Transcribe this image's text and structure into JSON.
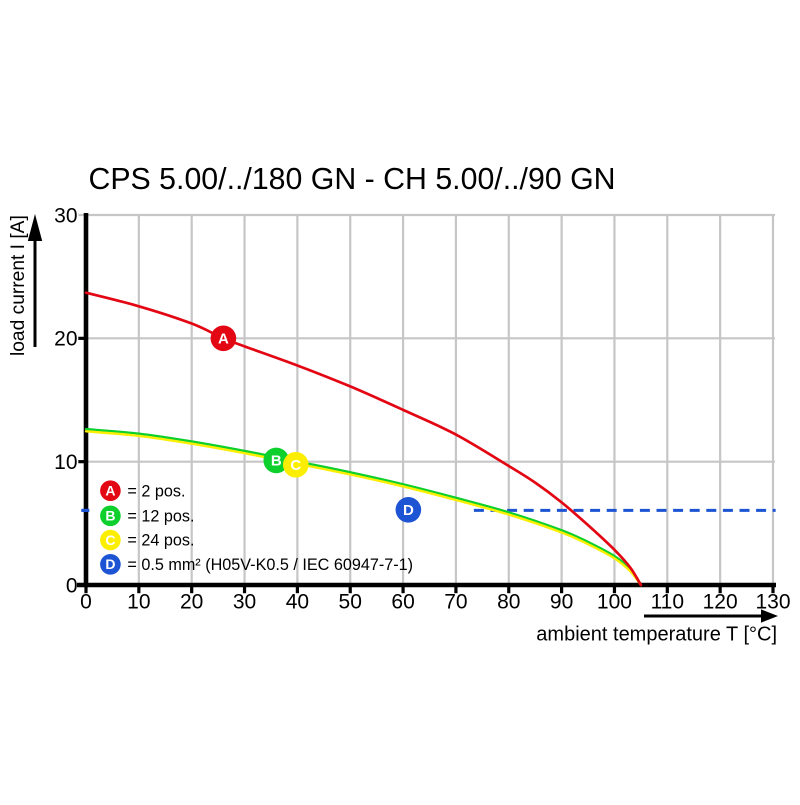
{
  "chart_data": {
    "type": "line",
    "title": "CPS 5.00/../180 GN - CH 5.00/../90 GN",
    "xlabel": "ambient temperature T [°C]",
    "ylabel": "load current I [A]",
    "xlim": [
      0,
      130
    ],
    "ylim": [
      0,
      30
    ],
    "xticks": [
      0,
      10,
      20,
      30,
      40,
      50,
      60,
      70,
      80,
      90,
      100,
      110,
      120,
      130
    ],
    "yticks": [
      0,
      10,
      20,
      30
    ],
    "grid": true,
    "grid_color": "#c6c6c6",
    "axis_color": "#000000",
    "background": "#ffffff",
    "legend_position": "bottom-left-inside",
    "series": [
      {
        "name": "A",
        "label": "2 pos.",
        "color": "#e30613",
        "style": "solid",
        "points": [
          [
            0,
            23.7
          ],
          [
            10,
            22.6
          ],
          [
            20,
            21.2
          ],
          [
            26,
            20.0
          ],
          [
            30,
            19.35
          ],
          [
            40,
            17.8
          ],
          [
            50,
            16.1
          ],
          [
            60,
            14.2
          ],
          [
            70,
            12.2
          ],
          [
            80,
            9.65
          ],
          [
            85,
            8.3
          ],
          [
            90,
            6.7
          ],
          [
            95,
            4.85
          ],
          [
            100,
            2.85
          ],
          [
            103,
            1.4
          ],
          [
            105,
            0
          ]
        ]
      },
      {
        "name": "B",
        "label": "12 pos.",
        "color": "#0ed02c",
        "style": "solid",
        "points": [
          [
            0,
            12.64
          ],
          [
            10,
            12.27
          ],
          [
            20,
            11.64
          ],
          [
            30,
            10.87
          ],
          [
            40,
            10.01
          ],
          [
            50,
            9.14
          ],
          [
            60,
            8.17
          ],
          [
            70,
            7.07
          ],
          [
            80,
            5.89
          ],
          [
            90,
            4.44
          ],
          [
            95,
            3.49
          ],
          [
            100,
            2.34
          ],
          [
            103,
            1.29
          ],
          [
            105,
            0
          ]
        ]
      },
      {
        "name": "C",
        "label": "24 pos.",
        "color": "#fcee00",
        "style": "solid",
        "points": [
          [
            0,
            12.46
          ],
          [
            10,
            12.09
          ],
          [
            20,
            11.46
          ],
          [
            30,
            10.69
          ],
          [
            40,
            9.83
          ],
          [
            50,
            8.96
          ],
          [
            60,
            7.99
          ],
          [
            70,
            6.89
          ],
          [
            80,
            5.71
          ],
          [
            90,
            4.26
          ],
          [
            95,
            3.31
          ],
          [
            100,
            2.16
          ],
          [
            103,
            1.11
          ],
          [
            105,
            0
          ]
        ]
      },
      {
        "name": "D",
        "label": "0.5 mm² (H05V-K0.5 / IEC 60947-7-1)",
        "color": "#1d54d4",
        "style": "dashed",
        "value": 6.05,
        "x_range": [
          73.4,
          130.5
        ],
        "axis_tick": true
      }
    ],
    "markers": [
      {
        "letter": "A",
        "x": 26,
        "y": 20.0,
        "color": "#e30613"
      },
      {
        "letter": "B",
        "x": 36,
        "y": 10.1,
        "color": "#0ed02c"
      },
      {
        "letter": "C",
        "x": 39.7,
        "y": 9.75,
        "color": "#fcee00"
      },
      {
        "letter": "D",
        "x": 61,
        "y": 6.1,
        "color": "#1d54d4"
      }
    ],
    "legend": [
      {
        "letter": "A",
        "color": "#e30613",
        "text": "= 2 pos."
      },
      {
        "letter": "B",
        "color": "#0ed02c",
        "text": "= 12 pos."
      },
      {
        "letter": "C",
        "color": "#fcee00",
        "text": "= 24 pos."
      },
      {
        "letter": "D",
        "color": "#1d54d4",
        "text": "= 0.5 mm² (H05V-K0.5 / IEC 60947-7-1)"
      }
    ]
  }
}
